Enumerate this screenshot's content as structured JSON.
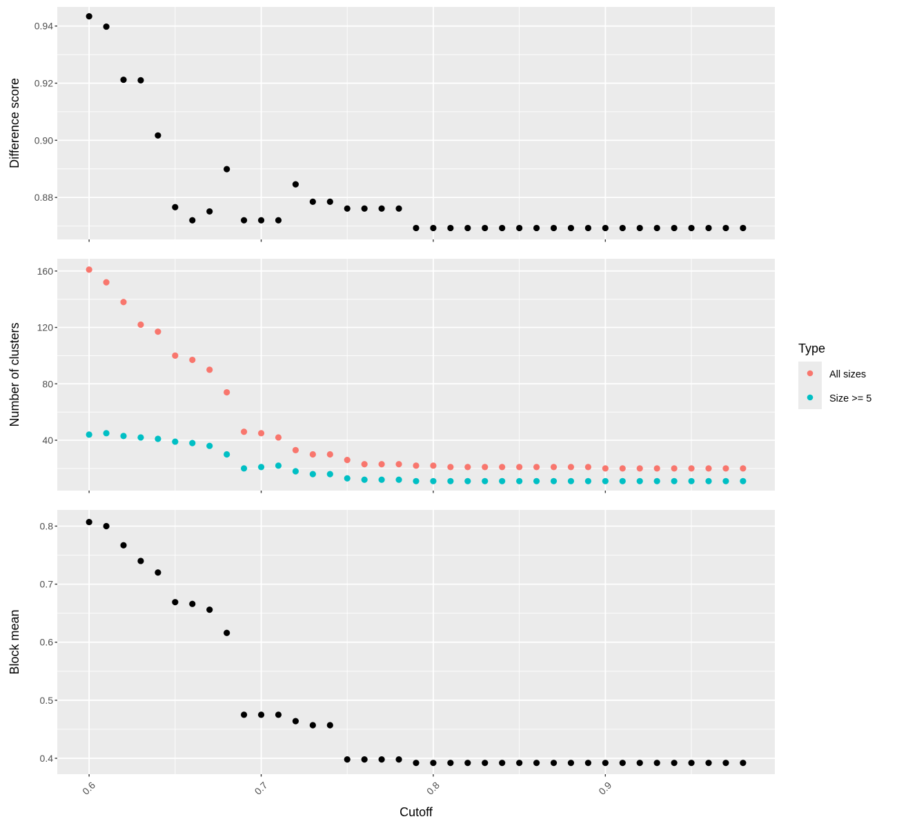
{
  "chart_data": [
    {
      "type": "scatter",
      "panel": "top",
      "xlabel": "Cutoff",
      "ylabel": "Difference score",
      "xlim": [
        0.5815,
        0.9985
      ],
      "ylim": [
        0.8653,
        0.9467
      ],
      "xticks": [
        0.6,
        0.7,
        0.8,
        0.9
      ],
      "xtick_labels": [
        "0.6",
        "0.7",
        "0.8",
        "0.9"
      ],
      "yticks": [
        0.88,
        0.9,
        0.92,
        0.94
      ],
      "ytick_labels": [
        "0.88",
        "0.90",
        "0.92",
        "0.94"
      ],
      "grid": true,
      "series": [
        {
          "name": "Difference score",
          "color": "#000000",
          "x": [
            0.6,
            0.61,
            0.62,
            0.63,
            0.64,
            0.65,
            0.66,
            0.67,
            0.68,
            0.69,
            0.7,
            0.71,
            0.72,
            0.73,
            0.74,
            0.75,
            0.76,
            0.77,
            0.78,
            0.79,
            0.8,
            0.81,
            0.82,
            0.83,
            0.84,
            0.85,
            0.86,
            0.87,
            0.88,
            0.89,
            0.9,
            0.91,
            0.92,
            0.93,
            0.94,
            0.95,
            0.96,
            0.97,
            0.98
          ],
          "y": [
            0.9434,
            0.9398,
            0.9212,
            0.921,
            0.9017,
            0.8766,
            0.872,
            0.8751,
            0.8899,
            0.872,
            0.872,
            0.872,
            0.8846,
            0.8785,
            0.8785,
            0.8761,
            0.8761,
            0.8761,
            0.8761,
            0.8693,
            0.8693,
            0.8693,
            0.8693,
            0.8693,
            0.8693,
            0.8693,
            0.8693,
            0.8693,
            0.8693,
            0.8693,
            0.8693,
            0.8693,
            0.8693,
            0.8693,
            0.8693,
            0.8693,
            0.8693,
            0.8693,
            0.8693
          ]
        }
      ]
    },
    {
      "type": "scatter",
      "panel": "middle",
      "xlabel": "Cutoff",
      "ylabel": "Number of clusters",
      "xlim": [
        0.5815,
        0.9985
      ],
      "ylim": [
        4.3,
        168.7
      ],
      "xticks": [
        0.6,
        0.7,
        0.8,
        0.9
      ],
      "xtick_labels": [
        "0.6",
        "0.7",
        "0.8",
        "0.9"
      ],
      "yticks": [
        40,
        80,
        120,
        160
      ],
      "ytick_labels": [
        "40",
        "80",
        "120",
        "160"
      ],
      "grid": true,
      "legend": {
        "title": "Type",
        "placement": "right",
        "entries": [
          {
            "label": "All sizes",
            "color": "#F8766D"
          },
          {
            "label": "Size >= 5",
            "color": "#00BFC4"
          }
        ]
      },
      "series": [
        {
          "name": "All sizes",
          "color": "#F8766D",
          "x": [
            0.6,
            0.61,
            0.62,
            0.63,
            0.64,
            0.65,
            0.66,
            0.67,
            0.68,
            0.69,
            0.7,
            0.71,
            0.72,
            0.73,
            0.74,
            0.75,
            0.76,
            0.77,
            0.78,
            0.79,
            0.8,
            0.81,
            0.82,
            0.83,
            0.84,
            0.85,
            0.86,
            0.87,
            0.88,
            0.89,
            0.9,
            0.91,
            0.92,
            0.93,
            0.94,
            0.95,
            0.96,
            0.97,
            0.98
          ],
          "y": [
            161,
            152,
            138,
            122,
            117,
            100,
            97,
            90,
            74,
            46,
            45,
            42,
            33,
            30,
            30,
            26,
            23,
            23,
            23,
            22,
            22,
            21,
            21,
            21,
            21,
            21,
            21,
            21,
            21,
            21,
            20,
            20,
            20,
            20,
            20,
            20,
            20,
            20,
            20
          ]
        },
        {
          "name": "Size >= 5",
          "color": "#00BFC4",
          "x": [
            0.6,
            0.61,
            0.62,
            0.63,
            0.64,
            0.65,
            0.66,
            0.67,
            0.68,
            0.69,
            0.7,
            0.71,
            0.72,
            0.73,
            0.74,
            0.75,
            0.76,
            0.77,
            0.78,
            0.79,
            0.8,
            0.81,
            0.82,
            0.83,
            0.84,
            0.85,
            0.86,
            0.87,
            0.88,
            0.89,
            0.9,
            0.91,
            0.92,
            0.93,
            0.94,
            0.95,
            0.96,
            0.97,
            0.98
          ],
          "y": [
            44,
            45,
            43,
            42,
            41,
            39,
            38,
            36,
            30,
            20,
            21,
            22,
            18,
            16,
            16,
            13,
            12,
            12,
            12,
            11,
            11,
            11,
            11,
            11,
            11,
            11,
            11,
            11,
            11,
            11,
            11,
            11,
            11,
            11,
            11,
            11,
            11,
            11,
            11
          ]
        }
      ]
    },
    {
      "type": "scatter",
      "panel": "bottom",
      "xlabel": "Cutoff",
      "ylabel": "Block mean",
      "xlim": [
        0.5815,
        0.9985
      ],
      "ylim": [
        0.3726,
        0.8279
      ],
      "xticks": [
        0.6,
        0.7,
        0.8,
        0.9
      ],
      "xtick_labels": [
        "0.6",
        "0.7",
        "0.8",
        "0.9"
      ],
      "yticks": [
        0.4,
        0.5,
        0.6,
        0.7,
        0.8
      ],
      "ytick_labels": [
        "0.4",
        "0.5",
        "0.6",
        "0.7",
        "0.8"
      ],
      "grid": true,
      "series": [
        {
          "name": "Block mean",
          "color": "#000000",
          "x": [
            0.6,
            0.61,
            0.62,
            0.63,
            0.64,
            0.65,
            0.66,
            0.67,
            0.68,
            0.69,
            0.7,
            0.71,
            0.72,
            0.73,
            0.74,
            0.75,
            0.76,
            0.77,
            0.78,
            0.79,
            0.8,
            0.81,
            0.82,
            0.83,
            0.84,
            0.85,
            0.86,
            0.87,
            0.88,
            0.89,
            0.9,
            0.91,
            0.92,
            0.93,
            0.94,
            0.95,
            0.96,
            0.97,
            0.98
          ],
          "y": [
            0.807,
            0.8,
            0.767,
            0.74,
            0.72,
            0.669,
            0.666,
            0.656,
            0.616,
            0.475,
            0.475,
            0.475,
            0.464,
            0.457,
            0.457,
            0.398,
            0.398,
            0.398,
            0.398,
            0.392,
            0.392,
            0.392,
            0.392,
            0.392,
            0.392,
            0.392,
            0.392,
            0.392,
            0.392,
            0.392,
            0.392,
            0.392,
            0.392,
            0.392,
            0.392,
            0.392,
            0.392,
            0.392,
            0.392
          ]
        }
      ]
    }
  ],
  "x_axis_title": "Cutoff",
  "legend_title": "Type",
  "legend_labels": [
    "All sizes",
    "Size >= 5"
  ]
}
